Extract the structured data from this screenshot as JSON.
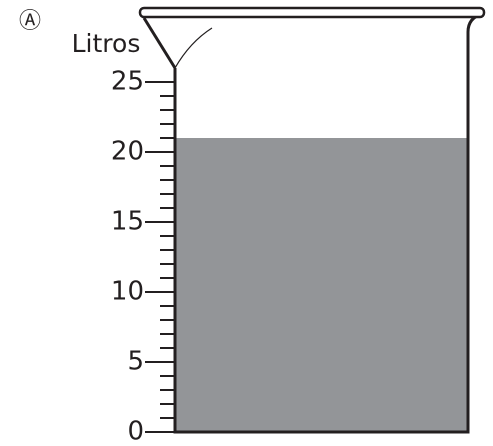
{
  "chart_data": {
    "type": "beaker",
    "marker": "Ⓐ",
    "ylabel": "Litros",
    "ylim": [
      0,
      25
    ],
    "yticks": [
      0,
      5,
      10,
      15,
      20,
      25
    ],
    "minor_yticks": [
      1,
      2,
      3,
      4,
      6,
      7,
      8,
      9,
      11,
      12,
      13,
      14,
      16,
      17,
      18,
      19,
      21,
      22,
      23,
      24
    ],
    "value": 21,
    "color": "#939598"
  }
}
